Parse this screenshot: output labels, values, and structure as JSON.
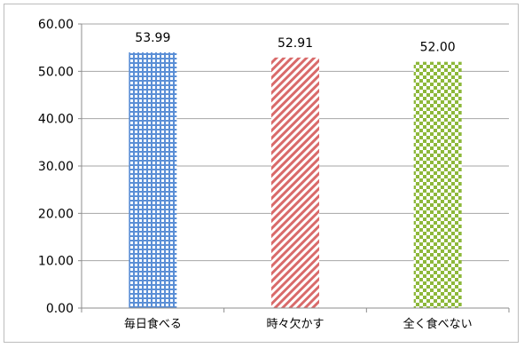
{
  "chart_data": {
    "type": "bar",
    "categories": [
      "毎日食べる",
      "時々欠かす",
      "全く食べない"
    ],
    "values": [
      53.99,
      52.91,
      52.0
    ],
    "data_labels": [
      "53.99",
      "52.91",
      "52.00"
    ],
    "title": "",
    "xlabel": "",
    "ylabel": "",
    "ylim": [
      0,
      60
    ],
    "yticks": [
      "0.00",
      "10.00",
      "20.00",
      "30.00",
      "40.00",
      "50.00",
      "60.00"
    ],
    "grid": true,
    "legend": "none",
    "colors": {
      "bar_patterns": [
        "#5b8fd6",
        "#d96a6a",
        "#8db83a"
      ],
      "gridline": "#a6a6a6",
      "axis": "#8c8c8c",
      "text": "#000000"
    },
    "patterns": [
      "grid-check",
      "diagonal-stripes",
      "checkerboard"
    ]
  }
}
